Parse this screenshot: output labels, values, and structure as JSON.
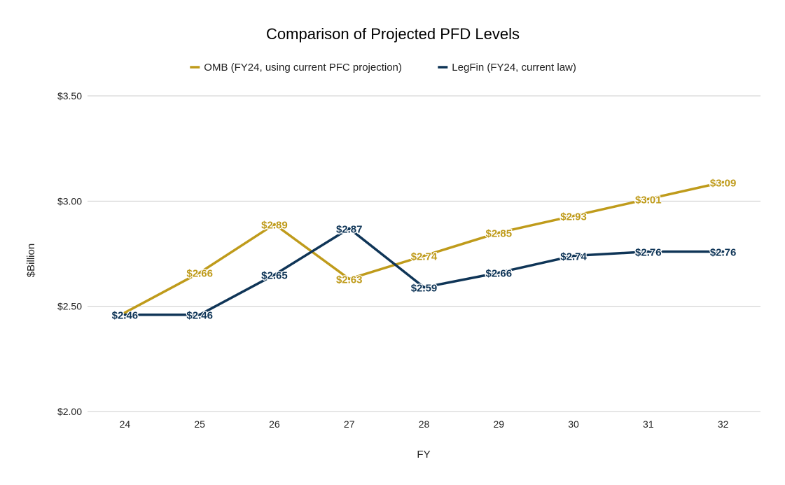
{
  "chart_data": {
    "type": "line",
    "title": "Comparison of Projected PFD Levels",
    "xlabel": "FY",
    "ylabel": "$Billion",
    "categories": [
      "24",
      "25",
      "26",
      "27",
      "28",
      "29",
      "30",
      "31",
      "32"
    ],
    "ylim": [
      2.0,
      3.5
    ],
    "yticks": [
      2.0,
      2.5,
      3.0,
      3.5
    ],
    "ytick_labels": [
      "$2.00",
      "$2.50",
      "$3.00",
      "$3.50"
    ],
    "grid": true,
    "legend_position": "top",
    "series": [
      {
        "name": "OMB (FY24, using current PFC projection)",
        "color": "#bf9b1b",
        "values": [
          2.47,
          2.66,
          2.89,
          2.63,
          2.74,
          2.85,
          2.93,
          3.01,
          3.09
        ],
        "labels": [
          "",
          "$2.66",
          "$2.89",
          "$2.63",
          "$2.74",
          "$2.85",
          "$2.93",
          "$3.01",
          "$3.09"
        ]
      },
      {
        "name": "LegFin (FY24, current law)",
        "color": "#0f3557",
        "values": [
          2.46,
          2.46,
          2.65,
          2.87,
          2.59,
          2.66,
          2.74,
          2.76,
          2.76
        ],
        "labels": [
          "$2.46",
          "$2.46",
          "$2.65",
          "$2.87",
          "$2.59",
          "$2.66",
          "$2.74",
          "$2.76",
          "$2.76"
        ]
      }
    ]
  }
}
